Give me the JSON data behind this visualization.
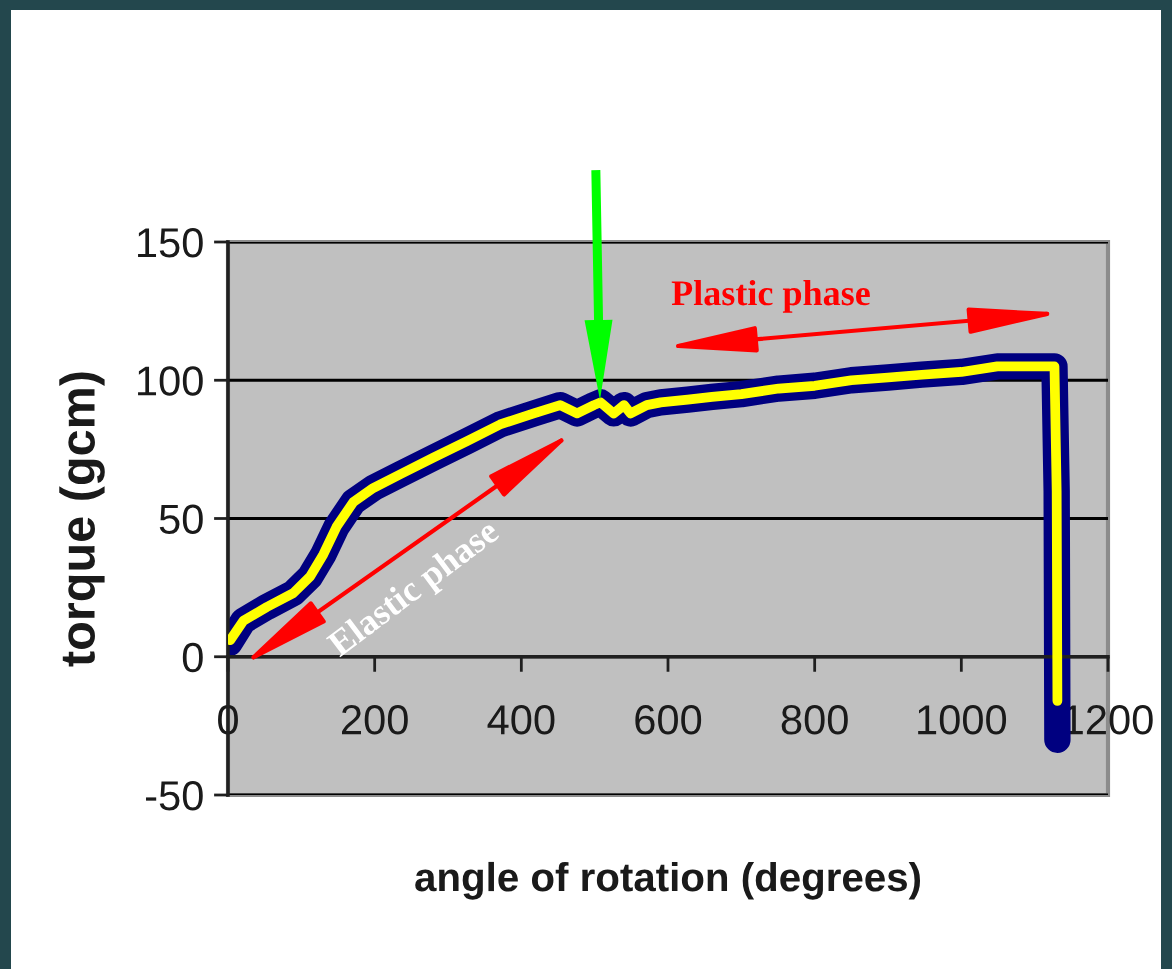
{
  "chart_data": {
    "type": "line",
    "xlabel": "angle of rotation (degrees)",
    "ylabel": "torque (gcm)",
    "xlim": [
      0,
      1200
    ],
    "ylim": [
      -50,
      150
    ],
    "xticks": [
      0,
      200,
      400,
      600,
      800,
      1000,
      1200
    ],
    "yticks": [
      -50,
      0,
      50,
      100,
      150
    ],
    "grid": "y",
    "line_style": "solid",
    "series": [
      {
        "color": "#000080",
        "x": [
          2,
          21,
          53,
          89,
          112,
          130,
          148,
          171,
          198,
          235,
          280,
          326,
          371,
          417,
          453,
          476,
          499,
          508,
          526,
          540,
          549,
          571,
          590,
          627,
          660,
          700,
          751,
          800,
          850,
          900,
          946,
          1000,
          1049,
          1099,
          1127,
          1130,
          1131
        ],
        "values": [
          5,
          13,
          18,
          23,
          29,
          37,
          47,
          56,
          61,
          66,
          72,
          78,
          84,
          88,
          91,
          88,
          91,
          92,
          88,
          91,
          88,
          91,
          92,
          93,
          94,
          95,
          97,
          98,
          100,
          101,
          102,
          103,
          105,
          105,
          105,
          60,
          -30
        ]
      },
      {
        "color": "#ffff00",
        "x": [
          3,
          21,
          53,
          89,
          112,
          130,
          148,
          171,
          198,
          235,
          280,
          326,
          371,
          417,
          453,
          476,
          499,
          508,
          526,
          540,
          549,
          571,
          590,
          627,
          660,
          700,
          751,
          800,
          850,
          900,
          946,
          1000,
          1049,
          1099,
          1127,
          1130,
          1131
        ],
        "values": [
          6,
          13,
          18,
          23,
          29,
          37,
          47,
          56,
          61,
          66,
          72,
          78,
          84,
          88,
          91,
          88,
          91,
          92,
          88,
          91,
          88,
          91,
          92,
          93,
          94,
          95,
          97,
          98,
          100,
          101,
          102,
          103,
          105,
          105,
          105,
          60,
          -16
        ]
      }
    ],
    "annotations": [
      "Plastic phase",
      "Elastic phase"
    ]
  }
}
